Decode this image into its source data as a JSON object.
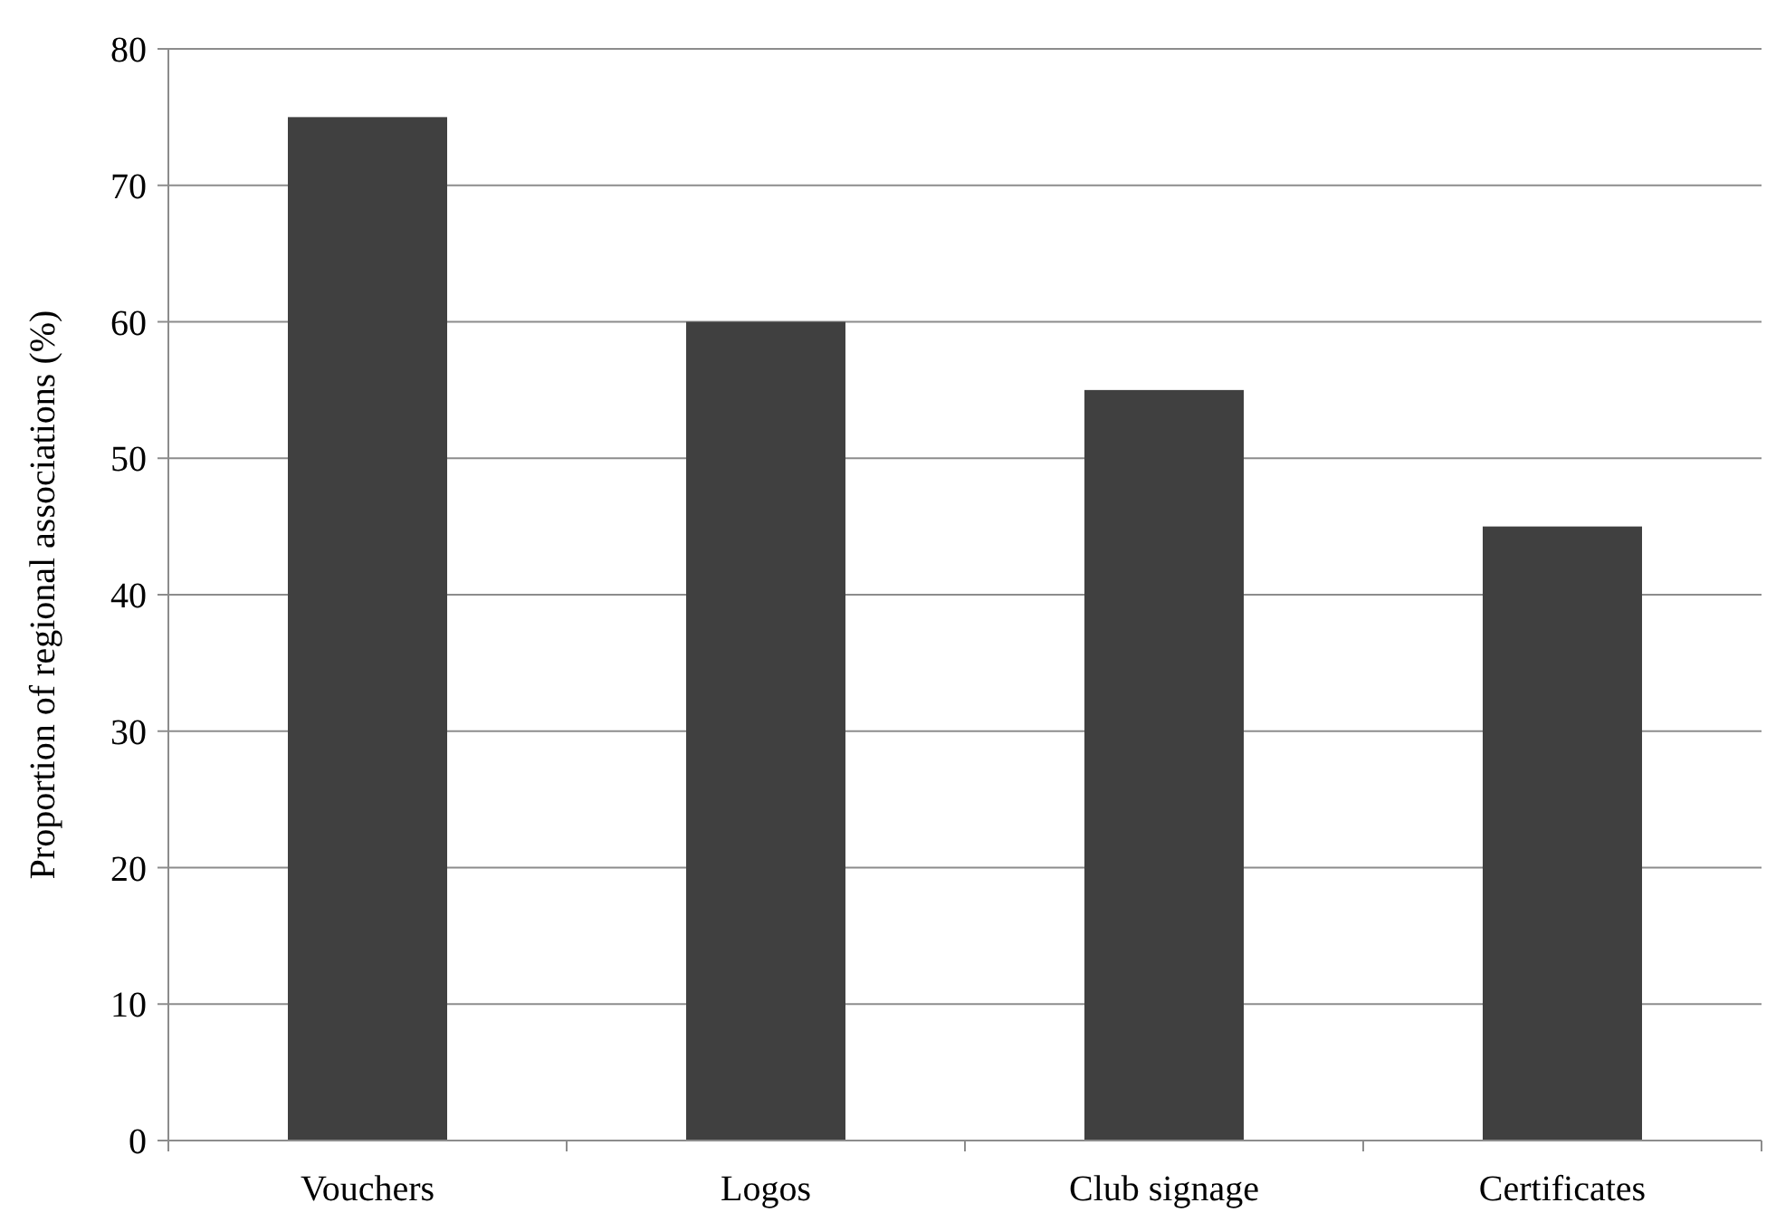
{
  "chart_data": {
    "type": "bar",
    "ylabel": "Proportion of regional associations (%)",
    "categories": [
      "Vouchers",
      "Logos",
      "Club signage",
      "Certificates"
    ],
    "values": [
      75,
      60,
      55,
      45
    ],
    "color": "#404040",
    "ylim": [
      0,
      80
    ],
    "yticks": [
      0,
      10,
      20,
      30,
      40,
      50,
      60,
      70,
      80
    ],
    "grid": "y"
  }
}
